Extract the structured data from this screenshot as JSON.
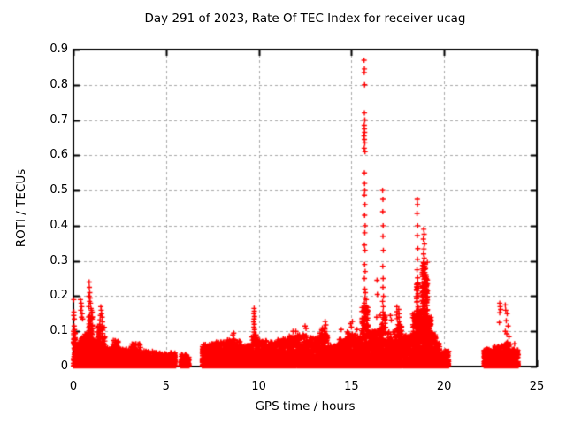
{
  "chart_data": {
    "type": "scatter",
    "title": "Day 291 of 2023, Rate Of TEC Index for receiver ucag",
    "xlabel": "GPS time / hours",
    "ylabel": "ROTI / TECUs",
    "xlim": [
      0,
      25
    ],
    "ylim": [
      0,
      0.9
    ],
    "x_ticks": [
      0,
      5,
      10,
      15,
      20,
      25
    ],
    "y_ticks": [
      0,
      0.1,
      0.2,
      0.3,
      0.4,
      0.5,
      0.6,
      0.7,
      0.8,
      0.9
    ],
    "grid": "dashed",
    "legend": "none",
    "marker": {
      "shape": "plus",
      "color": "#ff0000",
      "size": 7
    },
    "colors": {
      "marker": "#ff0000",
      "grid": "#a8a8a8",
      "border": "#000000",
      "background": "#ffffff"
    },
    "baseline_segments": [
      [
        0.0,
        0.1,
        0.1,
        70
      ],
      [
        0.1,
        0.35,
        0.065,
        140
      ],
      [
        0.35,
        0.6,
        0.085,
        150
      ],
      [
        0.6,
        0.78,
        0.1,
        110
      ],
      [
        0.78,
        1.05,
        0.155,
        200
      ],
      [
        1.05,
        1.3,
        0.075,
        140
      ],
      [
        1.3,
        1.7,
        0.115,
        230
      ],
      [
        1.7,
        2.1,
        0.055,
        210
      ],
      [
        2.1,
        2.45,
        0.075,
        180
      ],
      [
        2.45,
        3.1,
        0.05,
        300
      ],
      [
        3.1,
        3.65,
        0.065,
        250
      ],
      [
        3.65,
        4.3,
        0.045,
        280
      ],
      [
        4.3,
        5.0,
        0.04,
        290
      ],
      [
        5.0,
        5.52,
        0.04,
        210
      ],
      [
        5.8,
        6.25,
        0.035,
        170
      ],
      [
        6.95,
        7.6,
        0.065,
        300
      ],
      [
        7.6,
        8.3,
        0.07,
        320
      ],
      [
        8.3,
        9.0,
        0.08,
        320
      ],
      [
        9.0,
        9.6,
        0.06,
        270
      ],
      [
        9.6,
        9.9,
        0.09,
        150
      ],
      [
        9.9,
        10.45,
        0.075,
        250
      ],
      [
        10.45,
        11.0,
        0.07,
        250
      ],
      [
        11.0,
        11.55,
        0.08,
        250
      ],
      [
        11.55,
        12.1,
        0.09,
        250
      ],
      [
        12.1,
        12.7,
        0.09,
        270
      ],
      [
        12.7,
        13.3,
        0.085,
        270
      ],
      [
        13.3,
        13.75,
        0.11,
        220
      ],
      [
        13.75,
        14.3,
        0.06,
        250
      ],
      [
        14.3,
        14.75,
        0.08,
        220
      ],
      [
        14.75,
        15.15,
        0.1,
        200
      ],
      [
        15.15,
        15.55,
        0.09,
        190
      ],
      [
        15.55,
        15.9,
        0.17,
        260
      ],
      [
        15.9,
        16.4,
        0.1,
        240
      ],
      [
        16.4,
        16.55,
        0.11,
        80
      ],
      [
        16.55,
        16.85,
        0.15,
        170
      ],
      [
        16.85,
        17.35,
        0.1,
        230
      ],
      [
        17.35,
        17.75,
        0.12,
        200
      ],
      [
        17.75,
        18.3,
        0.09,
        260
      ],
      [
        18.3,
        18.5,
        0.15,
        150
      ],
      [
        18.5,
        18.62,
        0.24,
        120
      ],
      [
        18.62,
        18.8,
        0.16,
        140
      ],
      [
        18.8,
        19.1,
        0.3,
        380
      ],
      [
        19.1,
        19.3,
        0.14,
        160
      ],
      [
        19.3,
        19.55,
        0.1,
        140
      ],
      [
        19.55,
        19.8,
        0.07,
        120
      ],
      [
        19.8,
        20.25,
        0.045,
        170
      ],
      [
        22.15,
        22.7,
        0.05,
        240
      ],
      [
        22.7,
        23.2,
        0.06,
        220
      ],
      [
        23.2,
        23.6,
        0.07,
        200
      ],
      [
        23.6,
        24.0,
        0.05,
        200
      ]
    ],
    "outliers": [
      [
        0.02,
        0.19
      ],
      [
        0.03,
        0.155
      ],
      [
        0.02,
        0.145
      ],
      [
        0.05,
        0.135
      ],
      [
        0.04,
        0.115
      ],
      [
        0.06,
        0.105
      ],
      [
        0.38,
        0.19
      ],
      [
        0.42,
        0.18
      ],
      [
        0.45,
        0.17
      ],
      [
        0.4,
        0.16
      ],
      [
        0.47,
        0.15
      ],
      [
        0.44,
        0.14
      ],
      [
        0.5,
        0.135
      ],
      [
        0.85,
        0.24
      ],
      [
        0.86,
        0.225
      ],
      [
        0.88,
        0.21
      ],
      [
        0.84,
        0.2
      ],
      [
        0.9,
        0.195
      ],
      [
        0.87,
        0.185
      ],
      [
        0.92,
        0.18
      ],
      [
        0.83,
        0.17
      ],
      [
        0.95,
        0.165
      ],
      [
        0.97,
        0.16
      ],
      [
        1.48,
        0.17
      ],
      [
        1.5,
        0.16
      ],
      [
        1.52,
        0.15
      ],
      [
        1.46,
        0.145
      ],
      [
        1.55,
        0.14
      ],
      [
        1.44,
        0.133
      ],
      [
        1.57,
        0.127
      ],
      [
        1.42,
        0.12
      ],
      [
        8.65,
        0.095
      ],
      [
        8.6,
        0.09
      ],
      [
        9.75,
        0.165
      ],
      [
        9.76,
        0.157
      ],
      [
        9.74,
        0.15
      ],
      [
        9.77,
        0.142
      ],
      [
        9.75,
        0.135
      ],
      [
        9.73,
        0.127
      ],
      [
        9.76,
        0.12
      ],
      [
        9.74,
        0.112
      ],
      [
        9.77,
        0.105
      ],
      [
        9.75,
        0.098
      ],
      [
        11.85,
        0.1
      ],
      [
        12.0,
        0.1
      ],
      [
        12.5,
        0.115
      ],
      [
        12.55,
        0.108
      ],
      [
        13.58,
        0.128
      ],
      [
        13.62,
        0.118
      ],
      [
        14.45,
        0.105
      ],
      [
        14.95,
        0.122
      ],
      [
        15.05,
        0.128
      ],
      [
        15.0,
        0.112
      ],
      [
        15.3,
        0.105
      ],
      [
        15.68,
        0.87
      ],
      [
        15.7,
        0.845
      ],
      [
        15.69,
        0.835
      ],
      [
        15.71,
        0.8
      ],
      [
        15.7,
        0.72
      ],
      [
        15.72,
        0.7
      ],
      [
        15.69,
        0.685
      ],
      [
        15.7,
        0.675
      ],
      [
        15.71,
        0.665
      ],
      [
        15.68,
        0.655
      ],
      [
        15.7,
        0.645
      ],
      [
        15.72,
        0.635
      ],
      [
        15.69,
        0.62
      ],
      [
        15.73,
        0.61
      ],
      [
        15.7,
        0.55
      ],
      [
        15.71,
        0.52
      ],
      [
        15.72,
        0.5
      ],
      [
        15.7,
        0.487
      ],
      [
        15.73,
        0.46
      ],
      [
        15.71,
        0.43
      ],
      [
        15.74,
        0.4
      ],
      [
        15.72,
        0.38
      ],
      [
        15.7,
        0.345
      ],
      [
        15.73,
        0.33
      ],
      [
        15.71,
        0.29
      ],
      [
        15.74,
        0.27
      ],
      [
        15.7,
        0.25
      ],
      [
        15.72,
        0.22
      ],
      [
        15.75,
        0.21
      ],
      [
        15.73,
        0.195
      ],
      [
        15.7,
        0.18
      ],
      [
        15.76,
        0.17
      ],
      [
        15.72,
        0.16
      ],
      [
        15.78,
        0.15
      ],
      [
        15.8,
        0.19
      ],
      [
        15.82,
        0.17
      ],
      [
        15.85,
        0.155
      ],
      [
        16.38,
        0.245
      ],
      [
        16.4,
        0.205
      ],
      [
        16.36,
        0.14
      ],
      [
        16.68,
        0.5
      ],
      [
        16.7,
        0.475
      ],
      [
        16.69,
        0.44
      ],
      [
        16.71,
        0.4
      ],
      [
        16.7,
        0.37
      ],
      [
        16.72,
        0.33
      ],
      [
        16.69,
        0.285
      ],
      [
        16.71,
        0.25
      ],
      [
        16.7,
        0.225
      ],
      [
        16.73,
        0.2
      ],
      [
        16.68,
        0.185
      ],
      [
        16.72,
        0.17
      ],
      [
        16.7,
        0.155
      ],
      [
        16.74,
        0.145
      ],
      [
        17.1,
        0.145
      ],
      [
        17.15,
        0.132
      ],
      [
        17.45,
        0.17
      ],
      [
        17.46,
        0.156
      ],
      [
        17.44,
        0.146
      ],
      [
        17.47,
        0.136
      ],
      [
        17.55,
        0.162
      ],
      [
        17.57,
        0.15
      ],
      [
        17.56,
        0.14
      ],
      [
        17.58,
        0.128
      ],
      [
        17.6,
        0.118
      ],
      [
        18.55,
        0.475
      ],
      [
        18.56,
        0.46
      ],
      [
        18.54,
        0.435
      ],
      [
        18.57,
        0.4
      ],
      [
        18.55,
        0.372
      ],
      [
        18.58,
        0.335
      ],
      [
        18.56,
        0.305
      ],
      [
        18.54,
        0.275
      ],
      [
        18.57,
        0.252
      ],
      [
        18.9,
        0.39
      ],
      [
        18.92,
        0.376
      ],
      [
        18.88,
        0.362
      ],
      [
        18.94,
        0.348
      ],
      [
        18.91,
        0.334
      ],
      [
        18.89,
        0.32
      ],
      [
        18.93,
        0.308
      ],
      [
        18.9,
        0.296
      ],
      [
        18.95,
        0.285
      ],
      [
        18.87,
        0.272
      ],
      [
        18.92,
        0.26
      ],
      [
        18.96,
        0.25
      ],
      [
        19.0,
        0.24
      ],
      [
        19.05,
        0.22
      ],
      [
        23.0,
        0.18
      ],
      [
        23.02,
        0.17
      ],
      [
        23.05,
        0.162
      ],
      [
        23.0,
        0.153
      ],
      [
        22.98,
        0.125
      ],
      [
        23.3,
        0.175
      ],
      [
        23.32,
        0.16
      ],
      [
        23.4,
        0.15
      ],
      [
        23.35,
        0.13
      ],
      [
        23.45,
        0.115
      ],
      [
        23.3,
        0.1
      ],
      [
        23.38,
        0.093
      ],
      [
        23.5,
        0.085
      ],
      [
        23.8,
        0.065
      ]
    ]
  }
}
